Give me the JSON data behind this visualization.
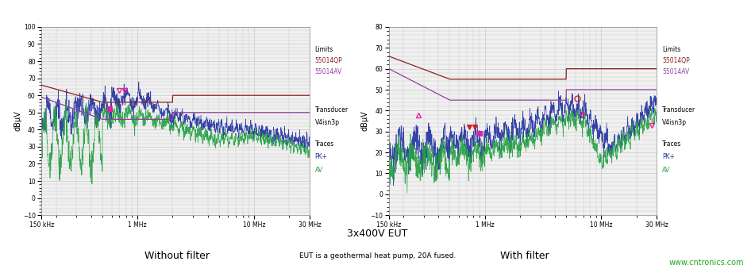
{
  "title_center": "3x400V EUT",
  "subtitle_center": "EUT is a geothermal heat pump, 20A fused.",
  "watermark": "www.cntronics.com",
  "watermark_color": "#22aa22",
  "left_title": "Without filter",
  "right_title": "With filter",
  "ylabel": "dBµV",
  "bg_color": "#ffffff",
  "grid_color": "#c8c8c8",
  "legend_limits": "Limits",
  "legend_55014QP": "55014QP",
  "legend_55014AV": "55014AV",
  "legend_transducer": "Transducer",
  "legend_v4isn3p": "V4isn3p",
  "legend_traces": "Traces",
  "legend_pk": "PK+",
  "legend_av": "AV",
  "color_55014QP": "#8B2020",
  "color_55014AV": "#9040a0",
  "color_pk": "#2030a0",
  "color_av": "#20a040",
  "color_marker_magenta": "#e020a0",
  "color_marker_red": "#cc2020",
  "left_ylim": [
    -10,
    100
  ],
  "left_yticks": [
    -10,
    0,
    10,
    20,
    30,
    40,
    50,
    60,
    70,
    80,
    90,
    100
  ],
  "right_ylim": [
    -10,
    80
  ],
  "right_yticks": [
    -10,
    0,
    10,
    20,
    30,
    40,
    50,
    60,
    70,
    80
  ],
  "xlim": [
    0.15,
    30
  ],
  "xtick_vals": [
    0.15,
    1.0,
    10.0,
    30.0
  ],
  "xtick_labels": [
    "150 kHz",
    "1 MHz",
    "10 MHz",
    "30 MHz"
  ]
}
